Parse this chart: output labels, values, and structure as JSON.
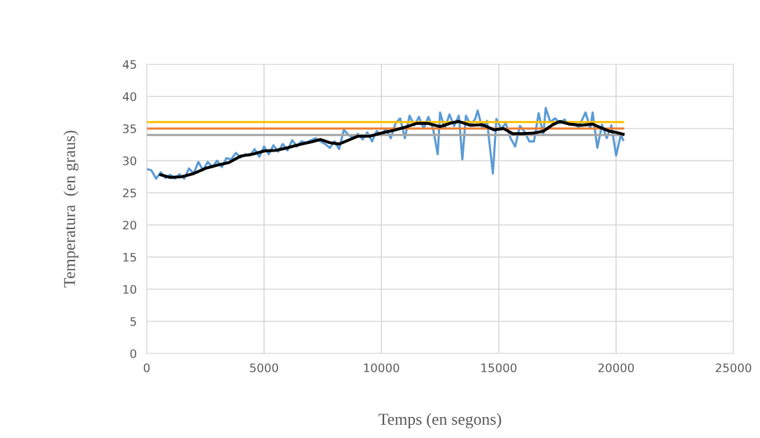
{
  "chart_data": {
    "type": "line",
    "xlabel": "Temps (en segons)",
    "ylabel": "Temperatura  (en graus)",
    "xlim": [
      0,
      25000
    ],
    "xticks": [
      0,
      5000,
      10000,
      15000,
      20000,
      25000
    ],
    "ylim": [
      0,
      45
    ],
    "yticks": [
      0,
      5,
      10,
      15,
      20,
      25,
      30,
      35,
      40,
      45
    ],
    "grid": true,
    "legend": false,
    "series": [
      {
        "color": "#5b9bd5",
        "x": [
          0,
          200,
          400,
          600,
          800,
          1000,
          1200,
          1400,
          1600,
          1800,
          2000,
          2200,
          2400,
          2600,
          2800,
          3000,
          3200,
          3400,
          3600,
          3800,
          4000,
          4200,
          4400,
          4600,
          4800,
          5000,
          5200,
          5400,
          5600,
          5800,
          6000,
          6200,
          6400,
          6600,
          6800,
          7000,
          7200,
          7400,
          7600,
          7800,
          8000,
          8200,
          8400,
          8600,
          8800,
          9000,
          9200,
          9400,
          9600,
          9800,
          10000,
          10200,
          10400,
          10600,
          10800,
          11000,
          11200,
          11400,
          11600,
          11800,
          12000,
          12200,
          12400,
          12500,
          12700,
          12900,
          13100,
          13300,
          13450,
          13600,
          13800,
          14000,
          14100,
          14300,
          14500,
          14750,
          14900,
          15100,
          15300,
          15500,
          15700,
          15900,
          16100,
          16300,
          16500,
          16700,
          16900,
          17000,
          17200,
          17400,
          17600,
          17800,
          18000,
          18200,
          18400,
          18700,
          18900,
          19000,
          19200,
          19400,
          19600,
          19800,
          20000,
          20200,
          20300
        ],
        "values": [
          28.7,
          28.5,
          27.2,
          28.2,
          27.3,
          27.8,
          27.2,
          27.9,
          27.2,
          28.8,
          28.0,
          29.8,
          28.5,
          29.8,
          29.0,
          30.0,
          29.0,
          30.4,
          30.2,
          31.2,
          30.5,
          31.0,
          30.8,
          31.8,
          30.6,
          32.2,
          31.0,
          32.4,
          31.4,
          32.6,
          31.6,
          33.2,
          32.2,
          33.0,
          32.8,
          33.2,
          33.5,
          33.0,
          32.6,
          32.0,
          33.0,
          31.8,
          34.8,
          34.0,
          33.6,
          34.2,
          33.3,
          34.4,
          33.0,
          34.6,
          34.0,
          35.0,
          33.5,
          35.8,
          36.6,
          33.5,
          37.0,
          35.5,
          36.8,
          35.0,
          36.8,
          35.0,
          31.0,
          37.5,
          35.0,
          37.2,
          35.4,
          37.0,
          30.2,
          37.0,
          35.6,
          36.5,
          37.8,
          35.0,
          36.2,
          28.0,
          36.5,
          35.0,
          35.8,
          33.5,
          32.2,
          35.4,
          34.5,
          33.0,
          33.0,
          37.4,
          34.0,
          38.2,
          36.0,
          36.6,
          35.8,
          36.4,
          35.6,
          35.8,
          35.2,
          37.5,
          35.0,
          37.5,
          32.0,
          35.6,
          33.5,
          35.5,
          30.8,
          34.0,
          33.2
        ]
      },
      {
        "color": "#a5a5a5",
        "x": [
          0,
          20300
        ],
        "values": [
          34,
          34
        ]
      },
      {
        "color": "#ed7d31",
        "x": [
          0,
          20300
        ],
        "values": [
          35,
          35
        ]
      },
      {
        "color": "#ffc000",
        "x": [
          0,
          20300
        ],
        "values": [
          36,
          36
        ]
      },
      {
        "color": "#000000",
        "x": [
          600,
          1000,
          1500,
          2000,
          2500,
          3000,
          3500,
          4000,
          4500,
          5000,
          5500,
          6000,
          6500,
          7000,
          7400,
          7800,
          8200,
          8600,
          9000,
          9500,
          10000,
          10500,
          11000,
          11500,
          12000,
          12500,
          13000,
          13300,
          13800,
          14300,
          14800,
          15200,
          15600,
          16000,
          16500,
          16900,
          17300,
          17600,
          18000,
          18500,
          19000,
          19300,
          19700,
          20000,
          20300
        ],
        "values": [
          27.8,
          27.4,
          27.5,
          28.0,
          28.8,
          29.3,
          29.7,
          30.7,
          31.0,
          31.5,
          31.6,
          32.0,
          32.5,
          32.9,
          33.3,
          32.8,
          32.6,
          33.2,
          33.8,
          33.8,
          34.3,
          34.7,
          35.2,
          35.8,
          35.8,
          35.3,
          35.9,
          36.1,
          35.5,
          35.6,
          34.8,
          35.0,
          34.2,
          34.2,
          34.3,
          34.6,
          35.6,
          36.1,
          35.7,
          35.5,
          35.7,
          35.2,
          34.6,
          34.4,
          34.1
        ]
      }
    ]
  }
}
